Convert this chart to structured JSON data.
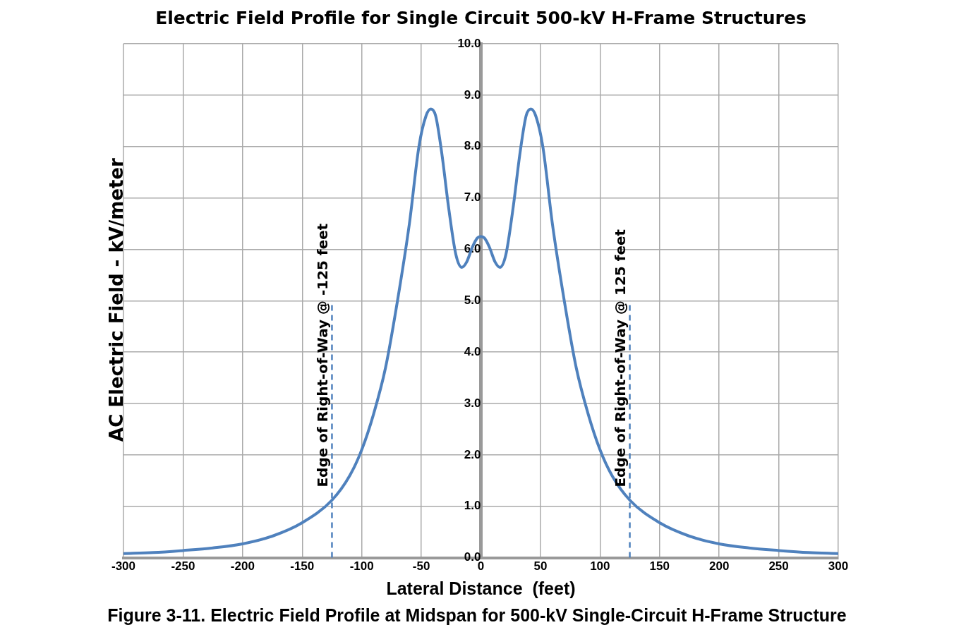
{
  "chart_data": {
    "type": "line",
    "title": "Electric Field Profile for Single Circuit 500-kV H-Frame Structures",
    "xlabel": "Lateral Distance  (feet)",
    "ylabel": "AC Electric Field  -  kV/meter",
    "annotations": [
      "Figure 3-11. Electric Field Profile at Midspan for 500-kV Single-Circuit H-Frame Structure"
    ],
    "series": [
      {
        "color": "#4f81bd",
        "x": [
          -300,
          -275,
          -250,
          -225,
          -200,
          -175,
          -150,
          -125,
          -110,
          -100,
          -90,
          -80,
          -70,
          -60,
          -52,
          -46,
          -42,
          -38,
          -33,
          -27,
          -21,
          -16,
          -12,
          -7,
          -3,
          0,
          3,
          7,
          12,
          16,
          21,
          27,
          33,
          38,
          42,
          46,
          52,
          60,
          70,
          80,
          90,
          100,
          110,
          125,
          150,
          175,
          200,
          225,
          250,
          275,
          300
        ],
        "values": [
          0.08,
          0.1,
          0.14,
          0.19,
          0.27,
          0.42,
          0.68,
          1.12,
          1.6,
          2.1,
          2.8,
          3.7,
          5.0,
          6.5,
          8.0,
          8.6,
          8.73,
          8.6,
          7.9,
          6.8,
          5.9,
          5.65,
          5.75,
          6.05,
          6.22,
          6.25,
          6.22,
          6.05,
          5.75,
          5.65,
          5.9,
          6.8,
          7.9,
          8.6,
          8.73,
          8.6,
          8.0,
          6.5,
          5.0,
          3.7,
          2.8,
          2.1,
          1.6,
          1.12,
          0.68,
          0.42,
          0.27,
          0.19,
          0.14,
          0.1,
          0.08
        ]
      }
    ],
    "xlim": [
      -300,
      300
    ],
    "xticks": [
      -300,
      -250,
      -200,
      -150,
      -100,
      -50,
      0,
      50,
      100,
      150,
      200,
      250,
      300
    ],
    "ylim": [
      0,
      10
    ],
    "yticks": [
      {
        "value": 0,
        "label": "0.0"
      },
      {
        "value": 1,
        "label": "1.0"
      },
      {
        "value": 2,
        "label": "2.0"
      },
      {
        "value": 3,
        "label": "3.0"
      },
      {
        "value": 4,
        "label": "4.0"
      },
      {
        "value": 5,
        "label": "5.0"
      },
      {
        "value": 6,
        "label": "6.0"
      },
      {
        "value": 7,
        "label": "7.0"
      },
      {
        "value": 8,
        "label": "8.0"
      },
      {
        "value": 9,
        "label": "9.0"
      },
      {
        "value": 10,
        "label": "10.0"
      }
    ],
    "ref_lines": [
      {
        "axis": "x",
        "value": -125,
        "label": "Edge of Right-of-Way @ -125 feet",
        "color": "#4f81bd",
        "line_style": "dashed"
      },
      {
        "axis": "x",
        "value": 125,
        "label": "Edge of Right-of-Way @ 125 feet",
        "color": "#4f81bd",
        "line_style": "dashed"
      }
    ],
    "grid": true,
    "legend": false,
    "marker": "none",
    "line_style": "solid"
  }
}
